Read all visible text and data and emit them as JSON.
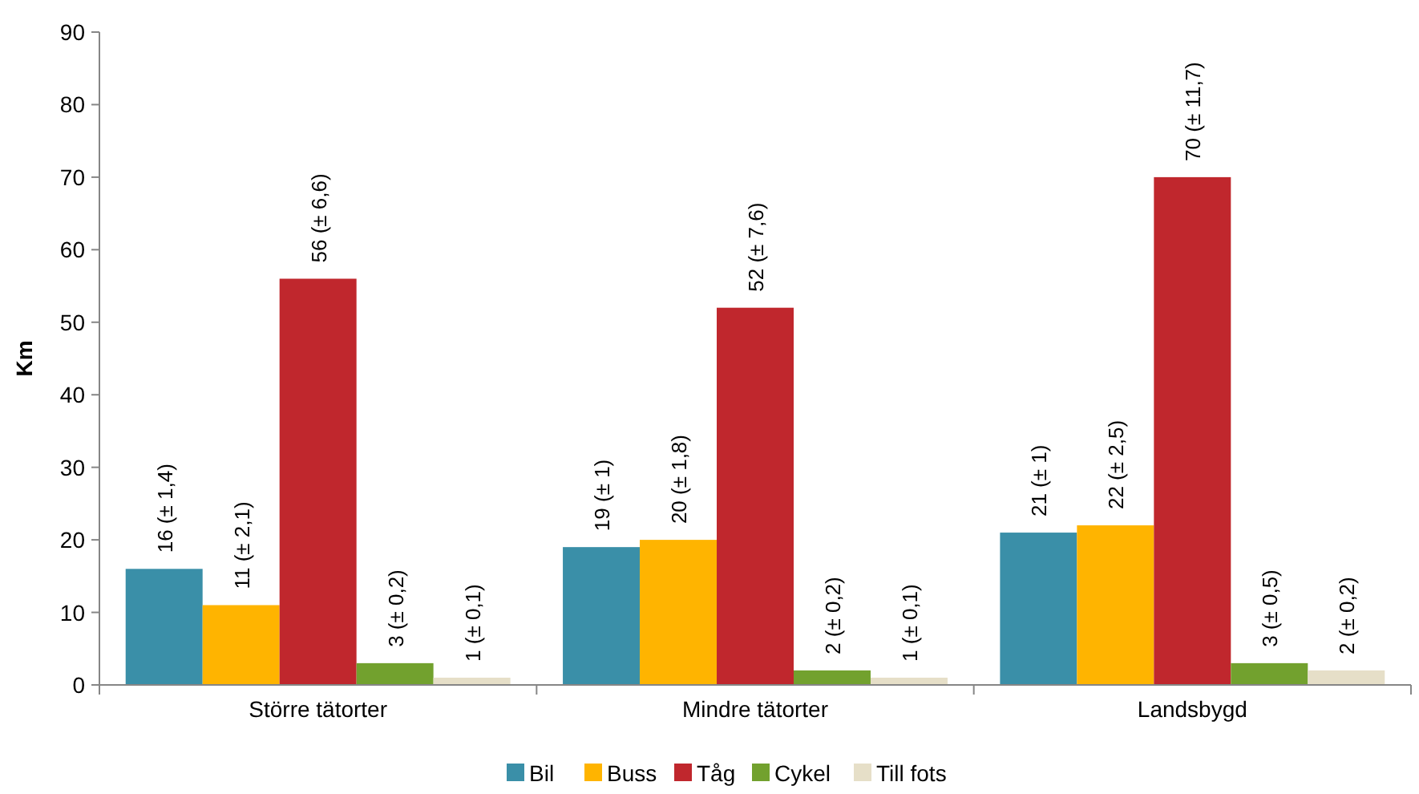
{
  "chart_data": {
    "type": "bar",
    "ylabel": "Km",
    "categories": [
      "Större tätorter",
      "Mindre tätorter",
      "Landsbygd"
    ],
    "ylim": [
      0,
      90
    ],
    "yticks": [
      0,
      10,
      20,
      30,
      40,
      50,
      60,
      70,
      80,
      90
    ],
    "grid": false,
    "legend": "bottom",
    "series": [
      {
        "name": "Bil",
        "color": "#3a8fa8",
        "values": [
          16,
          19,
          21
        ],
        "value_labels": [
          "16 (± 1,4)",
          "19 (± 1)",
          "21 (± 1)"
        ]
      },
      {
        "name": "Buss",
        "color": "#ffb400",
        "values": [
          11,
          20,
          22
        ],
        "value_labels": [
          "11 (± 2,1)",
          "20 (± 1,8)",
          "22 (± 2,5)"
        ]
      },
      {
        "name": "Tåg",
        "color": "#c0272d",
        "values": [
          56,
          52,
          70
        ],
        "value_labels": [
          "56 (± 6,6)",
          "52 (± 7,6)",
          "70 (± 11,7)"
        ]
      },
      {
        "name": "Cykel",
        "color": "#72a12e",
        "values": [
          3,
          2,
          3
        ],
        "value_labels": [
          "3 (± 0,2)",
          "2 (± 0,2)",
          "3 (± 0,5)"
        ]
      },
      {
        "name": "Till fots",
        "color": "#e6dfc8",
        "values": [
          1,
          1,
          2
        ],
        "value_labels": [
          "1 (± 0,1)",
          "1 (± 0,1)",
          "2 (± 0,2)"
        ]
      }
    ]
  }
}
